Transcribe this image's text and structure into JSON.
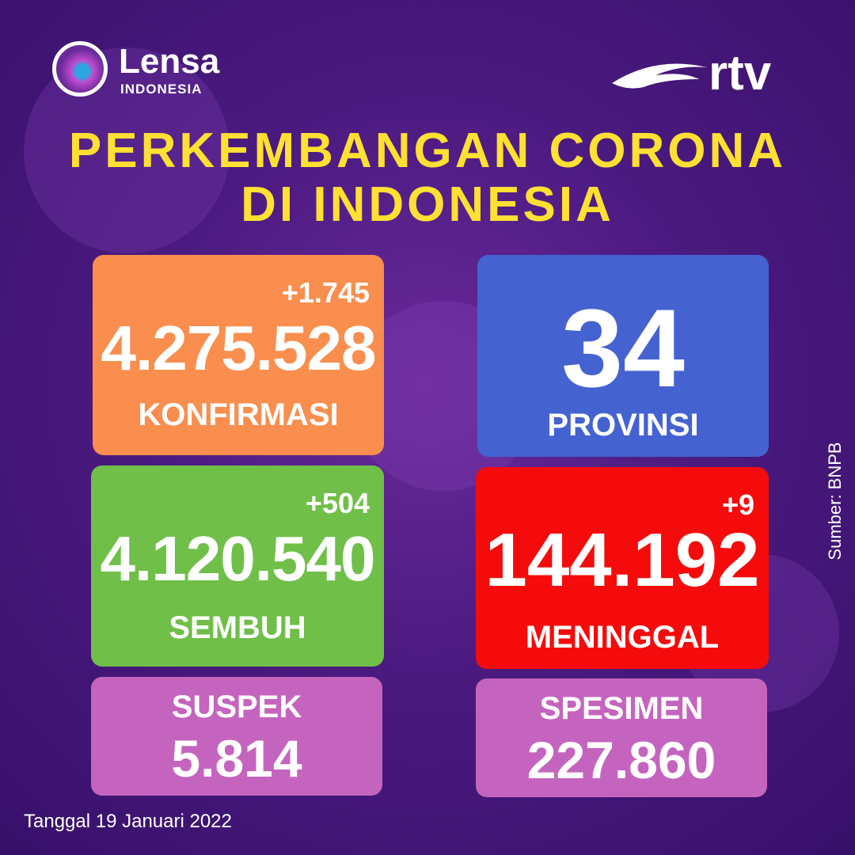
{
  "header": {
    "logo_left": "Lensa",
    "logo_left_sub": "INDONESIA",
    "logo_right": "rtv"
  },
  "title": [
    "PERKEMBANGAN CORONA",
    "DI INDONESIA"
  ],
  "cards": {
    "konfirmasi": {
      "delta": "+1.745",
      "value": "4.275.528",
      "label": "KONFIRMASI"
    },
    "provinsi": {
      "value": "34",
      "label": "PROVINSI"
    },
    "sembuh": {
      "delta": "+504",
      "value": "4.120.540",
      "label": "SEMBUH"
    },
    "meninggal": {
      "delta": "+9",
      "value": "144.192",
      "label": "MENINGGAL"
    },
    "suspek": {
      "label": "SUSPEK",
      "value": "5.814"
    },
    "spesimen": {
      "label": "SPESIMEN",
      "value": "227.860"
    }
  },
  "source": "Sumber: BNPB",
  "date": "Tanggal 19 Januari 2022"
}
